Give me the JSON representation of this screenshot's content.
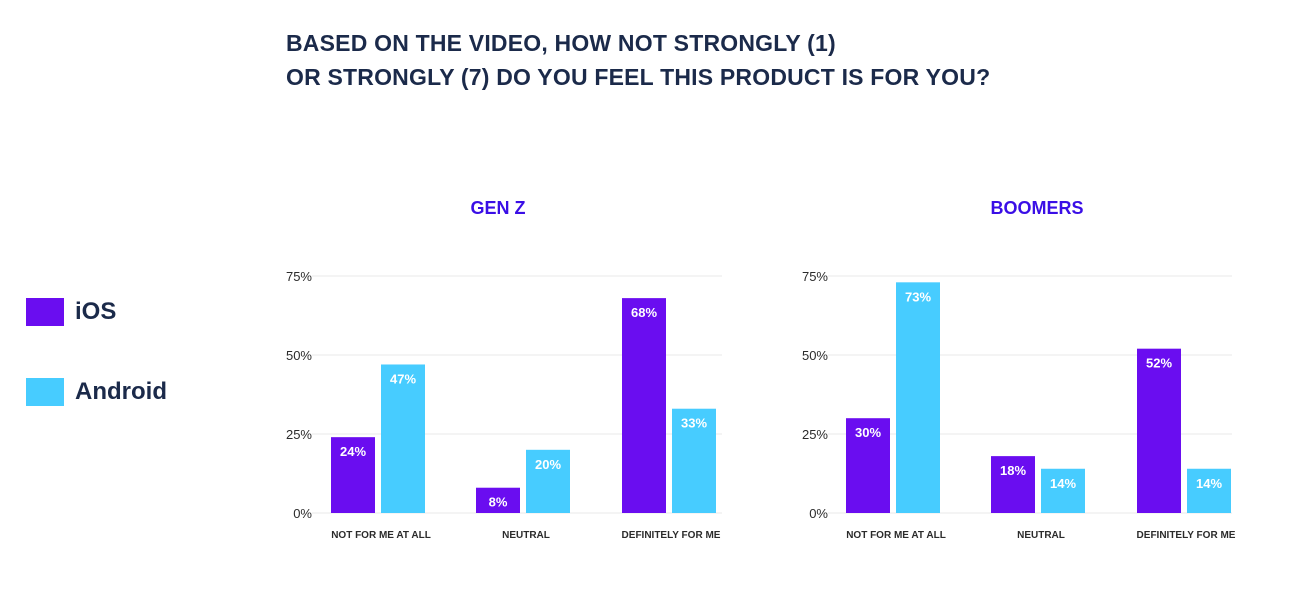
{
  "title": {
    "line1": "BASED ON THE VIDEO, HOW NOT STRONGLY (1)",
    "line2": "OR STRONGLY (7) DO YOU FEEL THIS PRODUCT IS FOR YOU?"
  },
  "legend": [
    {
      "label": "iOS",
      "color": "#6a0df0"
    },
    {
      "label": "Android",
      "color": "#47ccff"
    }
  ],
  "colors": {
    "title": "#1b2a4a",
    "panel_title": "#3a0ee6",
    "axis_text": "#2b2b2b",
    "grid": "#e8e8e8",
    "bar_label": "#ffffff"
  },
  "chart_data": [
    {
      "type": "bar",
      "title": "GEN Z",
      "categories": [
        "NOT FOR ME AT ALL",
        "NEUTRAL",
        "DEFINITELY FOR ME"
      ],
      "series": [
        {
          "name": "iOS",
          "values": [
            24,
            8,
            68
          ],
          "labels": [
            "24%",
            "8%",
            "68%"
          ]
        },
        {
          "name": "Android",
          "values": [
            47,
            20,
            33
          ],
          "labels": [
            "47%",
            "20%",
            "33%"
          ]
        }
      ],
      "yticks": [
        "0%",
        "25%",
        "50%",
        "75%"
      ],
      "ylim": [
        0,
        75
      ],
      "grid": true
    },
    {
      "type": "bar",
      "title": "BOOMERS",
      "categories": [
        "NOT FOR ME AT ALL",
        "NEUTRAL",
        "DEFINITELY FOR ME"
      ],
      "series": [
        {
          "name": "iOS",
          "values": [
            30,
            18,
            52
          ],
          "labels": [
            "30%",
            "18%",
            "52%"
          ]
        },
        {
          "name": "Android",
          "values": [
            73,
            14,
            14
          ],
          "labels": [
            "73%",
            "14%",
            "14%"
          ]
        }
      ],
      "yticks": [
        "0%",
        "25%",
        "50%",
        "75%"
      ],
      "ylim": [
        0,
        75
      ],
      "grid": true
    }
  ]
}
